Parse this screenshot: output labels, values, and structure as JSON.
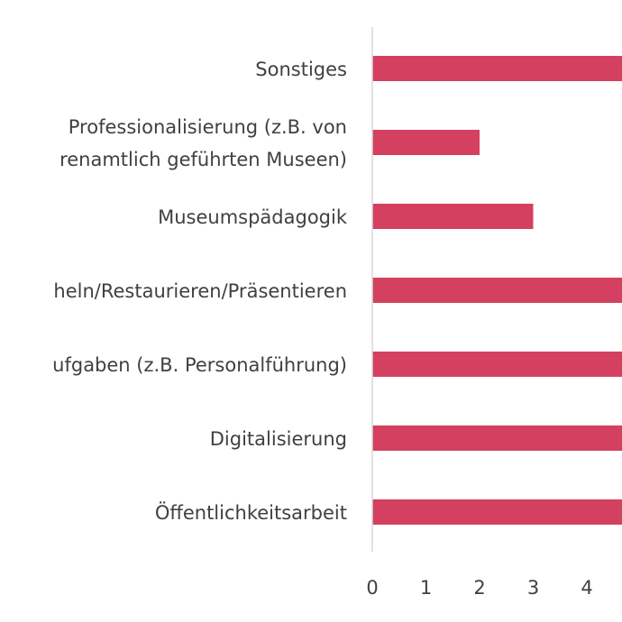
{
  "chart_data": {
    "type": "bar",
    "orientation": "horizontal",
    "categories": [
      [
        "Sonstiges"
      ],
      [
        "Professionalisierung (z.B. von",
        "renamtlich geführten Museen)"
      ],
      [
        "Museumspädagogik"
      ],
      [
        "heln/Restaurieren/Präsentieren"
      ],
      [
        "ufgaben (z.B. Personalführung)"
      ],
      [
        "Digitalisierung"
      ],
      [
        "Öffentlichkeitsarbeit"
      ]
    ],
    "values": [
      5,
      2,
      3,
      5,
      5,
      5,
      5
    ],
    "x_ticks": [
      "0",
      "1",
      "2",
      "3",
      "4"
    ],
    "xlim": [
      0,
      5
    ],
    "bar_color": "#d4405f",
    "grid": false
  }
}
